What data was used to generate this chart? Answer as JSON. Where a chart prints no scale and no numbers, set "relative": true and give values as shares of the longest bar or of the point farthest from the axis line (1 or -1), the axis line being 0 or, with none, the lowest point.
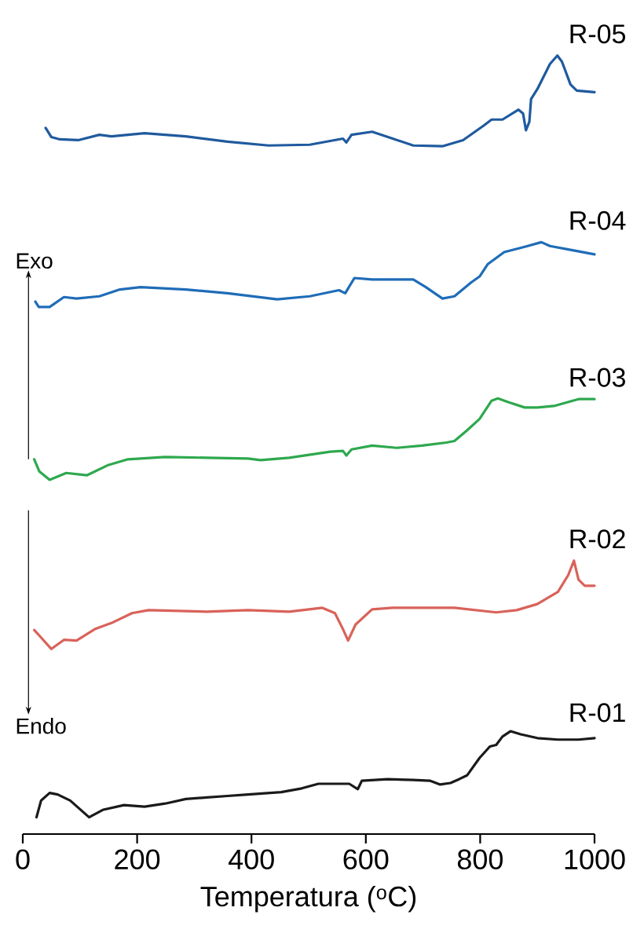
{
  "chart_data": {
    "type": "line",
    "relative": true,
    "xlabel": "Temperatura ($^{o}$C)",
    "xlim": [
      0,
      1000
    ],
    "xticks": [
      0,
      200,
      400,
      600,
      800,
      1000
    ],
    "marker": "none",
    "line_style": "solid",
    "annotations": [
      "Exo",
      "Endo"
    ],
    "series": [
      {
        "name": "R-05",
        "color": "#1f5a9e",
        "x": [
          40,
          50,
          65,
          97,
          134,
          155,
          213,
          285,
          358,
          430,
          502,
          560,
          566,
          575,
          611,
          647,
          683,
          734,
          770,
          806,
          820,
          839,
          867,
          875,
          880,
          886,
          889,
          900,
          922,
          935,
          943,
          958,
          969,
          1000
        ],
        "values": [
          0.905,
          0.893,
          0.89,
          0.889,
          0.896,
          0.894,
          0.898,
          0.894,
          0.887,
          0.882,
          0.883,
          0.891,
          0.886,
          0.896,
          0.9,
          0.891,
          0.882,
          0.881,
          0.889,
          0.908,
          0.916,
          0.916,
          0.929,
          0.924,
          0.902,
          0.913,
          0.943,
          0.956,
          0.989,
          1.0,
          0.992,
          0.962,
          0.954,
          0.952
        ]
      },
      {
        "name": "R-04",
        "color": "#1f6cb8",
        "x": [
          22,
          28,
          47,
          72,
          94,
          134,
          170,
          206,
          285,
          358,
          445,
          502,
          553,
          564,
          580,
          611,
          683,
          705,
          734,
          755,
          784,
          799,
          813,
          842,
          878,
          907,
          922,
          958,
          1000
        ],
        "values": [
          0.677,
          0.67,
          0.67,
          0.683,
          0.681,
          0.684,
          0.693,
          0.696,
          0.693,
          0.688,
          0.68,
          0.684,
          0.692,
          0.688,
          0.708,
          0.706,
          0.706,
          0.696,
          0.681,
          0.684,
          0.702,
          0.71,
          0.726,
          0.742,
          0.749,
          0.755,
          0.75,
          0.745,
          0.739
        ]
      },
      {
        "name": "R-03",
        "color": "#2ea84e",
        "x": [
          20,
          29,
          47,
          76,
          112,
          148,
          184,
          249,
          322,
          394,
          416,
          466,
          538,
          560,
          566,
          575,
          611,
          654,
          698,
          741,
          755,
          777,
          799,
          820,
          831,
          849,
          878,
          900,
          929,
          972,
          1000
        ],
        "values": [
          0.47,
          0.454,
          0.443,
          0.452,
          0.449,
          0.462,
          0.47,
          0.473,
          0.472,
          0.471,
          0.469,
          0.472,
          0.48,
          0.481,
          0.475,
          0.483,
          0.488,
          0.485,
          0.488,
          0.492,
          0.494,
          0.508,
          0.523,
          0.547,
          0.55,
          0.545,
          0.538,
          0.538,
          0.54,
          0.549,
          0.549
        ]
      },
      {
        "name": "R-02",
        "color": "#d9625a",
        "x": [
          20,
          32,
          50,
          72,
          94,
          126,
          155,
          191,
          220,
          322,
          394,
          466,
          524,
          546,
          560,
          569,
          582,
          611,
          647,
          755,
          828,
          864,
          900,
          936,
          954,
          964,
          972,
          983,
          1000
        ],
        "values": [
          0.246,
          0.236,
          0.221,
          0.233,
          0.232,
          0.247,
          0.255,
          0.268,
          0.272,
          0.27,
          0.272,
          0.27,
          0.275,
          0.268,
          0.247,
          0.232,
          0.253,
          0.273,
          0.275,
          0.275,
          0.269,
          0.272,
          0.28,
          0.296,
          0.318,
          0.337,
          0.312,
          0.304,
          0.304
        ]
      },
      {
        "name": "R-01",
        "color": "#1a1a1a",
        "x": [
          24,
          32,
          47,
          61,
          83,
          116,
          141,
          177,
          213,
          249,
          285,
          322,
          358,
          394,
          452,
          488,
          517,
          560,
          571,
          586,
          593,
          638,
          683,
          712,
          730,
          748,
          763,
          777,
          799,
          817,
          828,
          839,
          853,
          871,
          900,
          936,
          972,
          1000
        ],
        "values": [
          0.0,
          0.022,
          0.032,
          0.03,
          0.022,
          0.0,
          0.01,
          0.016,
          0.014,
          0.018,
          0.024,
          0.026,
          0.028,
          0.03,
          0.033,
          0.038,
          0.044,
          0.044,
          0.044,
          0.037,
          0.048,
          0.05,
          0.049,
          0.048,
          0.043,
          0.045,
          0.05,
          0.055,
          0.078,
          0.093,
          0.095,
          0.106,
          0.113,
          0.109,
          0.104,
          0.102,
          0.102,
          0.104
        ]
      }
    ]
  }
}
